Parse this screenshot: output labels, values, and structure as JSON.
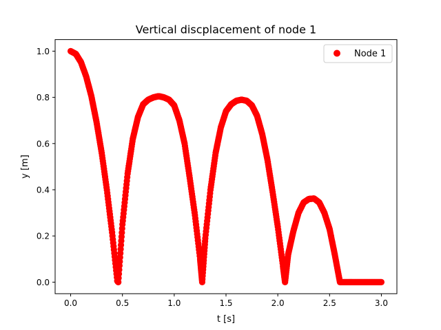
{
  "chart_data": {
    "type": "scatter",
    "title": "Vertical discplacement of node 1",
    "xlabel": "t [s]",
    "ylabel": "y [m]",
    "xlim": [
      -0.15,
      3.15
    ],
    "ylim": [
      -0.05,
      1.05
    ],
    "xticks": [
      0.0,
      0.5,
      1.0,
      1.5,
      2.0,
      2.5,
      3.0
    ],
    "xtick_labels": [
      "0.0",
      "0.5",
      "1.0",
      "1.5",
      "2.0",
      "2.5",
      "3.0"
    ],
    "yticks": [
      0.0,
      0.2,
      0.4,
      0.6,
      0.8,
      1.0
    ],
    "ytick_labels": [
      "0.0",
      "0.2",
      "0.4",
      "0.6",
      "0.8",
      "1.0"
    ],
    "grid": false,
    "legend": {
      "position": "top-right",
      "entries": [
        "Node 1"
      ]
    },
    "series": [
      {
        "name": "Node 1",
        "color": "#ff0000",
        "marker": "circle",
        "points": [
          [
            0.0,
            1.0
          ],
          [
            0.05,
            0.988
          ],
          [
            0.1,
            0.952
          ],
          [
            0.15,
            0.89
          ],
          [
            0.2,
            0.805
          ],
          [
            0.25,
            0.693
          ],
          [
            0.3,
            0.559
          ],
          [
            0.35,
            0.399
          ],
          [
            0.4,
            0.215
          ],
          [
            0.45,
            0.006
          ],
          [
            0.46,
            0.0
          ],
          [
            0.5,
            0.25
          ],
          [
            0.55,
            0.47
          ],
          [
            0.6,
            0.62
          ],
          [
            0.65,
            0.715
          ],
          [
            0.7,
            0.77
          ],
          [
            0.75,
            0.79
          ],
          [
            0.8,
            0.8
          ],
          [
            0.85,
            0.805
          ],
          [
            0.9,
            0.8
          ],
          [
            0.95,
            0.79
          ],
          [
            1.0,
            0.765
          ],
          [
            1.05,
            0.7
          ],
          [
            1.1,
            0.6
          ],
          [
            1.15,
            0.45
          ],
          [
            1.2,
            0.29
          ],
          [
            1.25,
            0.1
          ],
          [
            1.27,
            0.0
          ],
          [
            1.3,
            0.19
          ],
          [
            1.35,
            0.4
          ],
          [
            1.4,
            0.56
          ],
          [
            1.45,
            0.67
          ],
          [
            1.5,
            0.74
          ],
          [
            1.55,
            0.77
          ],
          [
            1.6,
            0.785
          ],
          [
            1.65,
            0.79
          ],
          [
            1.7,
            0.785
          ],
          [
            1.75,
            0.765
          ],
          [
            1.8,
            0.72
          ],
          [
            1.85,
            0.64
          ],
          [
            1.9,
            0.53
          ],
          [
            1.95,
            0.39
          ],
          [
            2.0,
            0.24
          ],
          [
            2.05,
            0.07
          ],
          [
            2.07,
            0.0
          ],
          [
            2.1,
            0.12
          ],
          [
            2.15,
            0.22
          ],
          [
            2.2,
            0.3
          ],
          [
            2.25,
            0.345
          ],
          [
            2.3,
            0.36
          ],
          [
            2.35,
            0.362
          ],
          [
            2.4,
            0.345
          ],
          [
            2.45,
            0.3
          ],
          [
            2.5,
            0.23
          ],
          [
            2.55,
            0.12
          ],
          [
            2.6,
            0.0
          ],
          [
            2.7,
            0.0
          ],
          [
            2.8,
            0.0
          ],
          [
            2.9,
            0.0
          ],
          [
            3.0,
            0.0
          ]
        ]
      }
    ]
  }
}
